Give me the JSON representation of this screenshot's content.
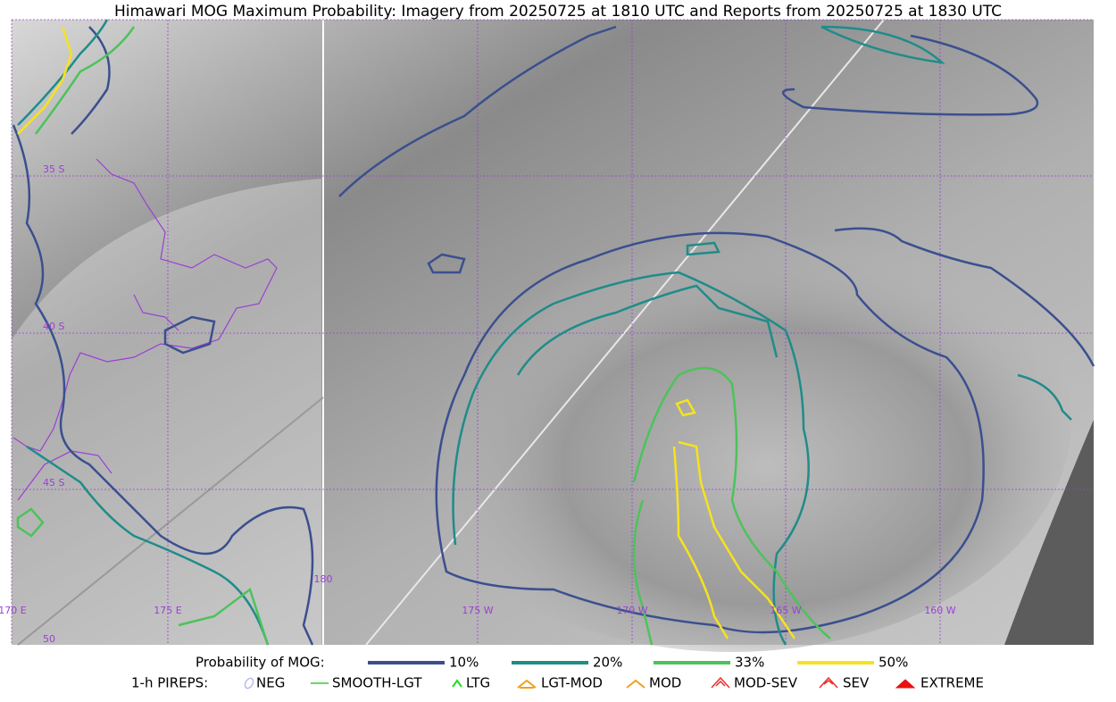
{
  "title": "Himawari MOG Maximum Probability: Imagery from 20250725 at 1810 UTC and Reports from 20250725 at 1830 UTC",
  "map": {
    "lat_labels": [
      "35 S",
      "40 S",
      "45 S",
      "50"
    ],
    "lon_labels": [
      "170 E",
      "175 E",
      "180",
      "175 W",
      "170 W",
      "165 W",
      "160 W"
    ]
  },
  "legend": {
    "probability": {
      "label": "Probability of MOG:",
      "items": [
        {
          "label": "10%",
          "color": "#3b4f8f"
        },
        {
          "label": "20%",
          "color": "#1f8c8a"
        },
        {
          "label": "33%",
          "color": "#4cc35a"
        },
        {
          "label": "50%",
          "color": "#f7e21e"
        }
      ]
    },
    "pireps": {
      "label": "1-h PIREPS:",
      "items": [
        {
          "label": "NEG",
          "color": "#b8b8ee"
        },
        {
          "label": "SMOOTH-LGT",
          "color": "#33cc33"
        },
        {
          "label": "LTG",
          "color": "#22dd22"
        },
        {
          "label": "LGT-MOD",
          "color": "#f0a020"
        },
        {
          "label": "MOD",
          "color": "#f0a020"
        },
        {
          "label": "MOD-SEV",
          "color": "#e83030"
        },
        {
          "label": "SEV",
          "color": "#e83030"
        },
        {
          "label": "EXTREME",
          "color": "#e81010"
        }
      ]
    }
  }
}
